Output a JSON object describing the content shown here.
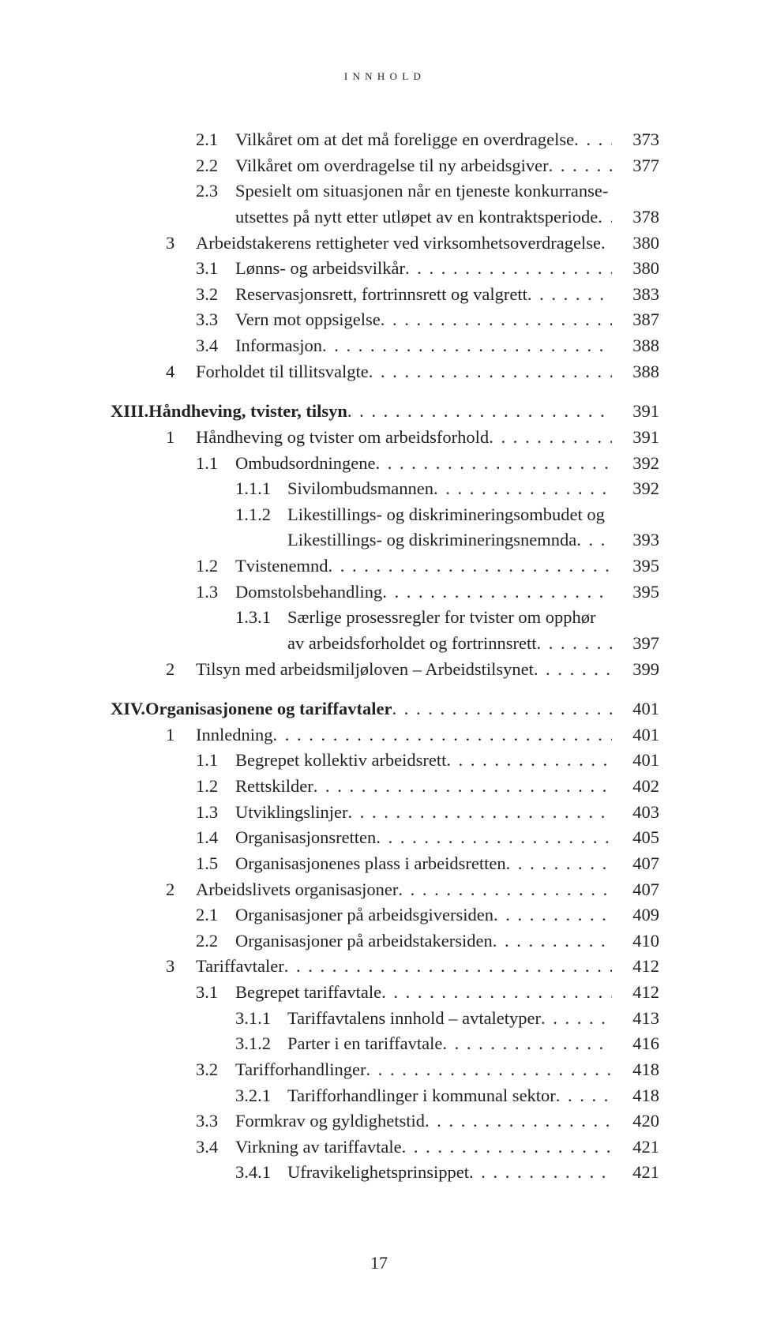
{
  "running_head": "innhold",
  "page_number": "17",
  "entries": [
    {
      "indent": "ind1",
      "numClass": "lvl2num",
      "num": "2.1",
      "title": "Vilkåret om at det må foreligge en overdragelse",
      "page": "373"
    },
    {
      "indent": "ind1",
      "numClass": "lvl2num",
      "num": "2.2",
      "title": "Vilkåret om overdragelse til ny arbeidsgiver",
      "page": "377"
    },
    {
      "indent": "ind1",
      "numClass": "lvl2num",
      "num": "2.3",
      "title": "Spesielt om situasjonen når en tjeneste konkurranse-",
      "page": ""
    },
    {
      "indent": "ind2",
      "numClass": "",
      "num": "",
      "title": "utsettes på nytt etter utløpet av en kontraktsperiode",
      "page": "378"
    },
    {
      "indent": "ind0",
      "numClass": "lvl1num",
      "num": "3",
      "title": "Arbeidstakerens rettigheter ved virksomhetsoverdragelse",
      "page": "380"
    },
    {
      "indent": "ind1",
      "numClass": "lvl2num",
      "num": "3.1",
      "title": "Lønns- og arbeidsvilkår",
      "page": "380"
    },
    {
      "indent": "ind1",
      "numClass": "lvl2num",
      "num": "3.2",
      "title": "Reservasjonsrett, fortrinnsrett og valgrett",
      "page": "383"
    },
    {
      "indent": "ind1",
      "numClass": "lvl2num",
      "num": "3.3",
      "title": "Vern mot oppsigelse",
      "page": "387"
    },
    {
      "indent": "ind1",
      "numClass": "lvl2num",
      "num": "3.4",
      "title": "Informasjon",
      "page": "388"
    },
    {
      "indent": "ind0",
      "numClass": "lvl1num",
      "num": "4",
      "title": "Forholdet til tillitsvalgte",
      "page": "388"
    }
  ],
  "section_xiii": {
    "roman": "XIII.",
    "head": {
      "title": "Håndheving, tvister, tilsyn",
      "page": "391"
    },
    "entries": [
      {
        "indent": "ind0",
        "numClass": "lvl1num",
        "num": "1",
        "title": "Håndheving og tvister om arbeidsforhold",
        "page": "391"
      },
      {
        "indent": "ind1",
        "numClass": "lvl2num",
        "num": "1.1",
        "title": "Ombudsordningene",
        "page": "392"
      },
      {
        "indent": "ind2",
        "numClass": "lvl3num",
        "num": "1.1.1",
        "title": "Sivilombudsmannen",
        "page": "392"
      },
      {
        "indent": "ind2",
        "numClass": "lvl3num",
        "num": "1.1.2",
        "title": "Likestillings- og diskrimineringsombudet og",
        "page": ""
      },
      {
        "indent": "ind3",
        "numClass": "",
        "num": "",
        "title": "Likestillings- og diskrimineringsnemnda",
        "page": "393"
      },
      {
        "indent": "ind1",
        "numClass": "lvl2num",
        "num": "1.2",
        "title": "Tvistenemnd",
        "page": "395"
      },
      {
        "indent": "ind1",
        "numClass": "lvl2num",
        "num": "1.3",
        "title": "Domstolsbehandling",
        "page": "395"
      },
      {
        "indent": "ind2",
        "numClass": "lvl3num",
        "num": "1.3.1",
        "title": "Særlige prosessregler for tvister om opphør",
        "page": ""
      },
      {
        "indent": "ind3",
        "numClass": "",
        "num": "",
        "title": "av arbeidsforholdet og fortrinnsrett",
        "page": "397"
      },
      {
        "indent": "ind0",
        "numClass": "lvl1num",
        "num": "2",
        "title": "Tilsyn med arbeidsmiljøloven – Arbeidstilsynet",
        "page": "399"
      }
    ]
  },
  "section_xiv": {
    "roman": "XIV.",
    "head": {
      "title": "Organisasjonene og tariffavtaler",
      "page": "401"
    },
    "entries": [
      {
        "indent": "ind0",
        "numClass": "lvl1num",
        "num": "1",
        "title": "Innledning",
        "page": "401"
      },
      {
        "indent": "ind1",
        "numClass": "lvl2num",
        "num": "1.1",
        "title": "Begrepet kollektiv arbeidsrett",
        "page": "401"
      },
      {
        "indent": "ind1",
        "numClass": "lvl2num",
        "num": "1.2",
        "title": "Rettskilder",
        "page": "402"
      },
      {
        "indent": "ind1",
        "numClass": "lvl2num",
        "num": "1.3",
        "title": "Utviklingslinjer",
        "page": "403"
      },
      {
        "indent": "ind1",
        "numClass": "lvl2num",
        "num": "1.4",
        "title": "Organisasjonsretten",
        "page": "405"
      },
      {
        "indent": "ind1",
        "numClass": "lvl2num",
        "num": "1.5",
        "title": "Organisasjonenes plass i arbeidsretten",
        "page": "407"
      },
      {
        "indent": "ind0",
        "numClass": "lvl1num",
        "num": "2",
        "title": "Arbeidslivets organisasjoner",
        "page": "407"
      },
      {
        "indent": "ind1",
        "numClass": "lvl2num",
        "num": "2.1",
        "title": "Organisasjoner på arbeidsgiversiden",
        "page": "409"
      },
      {
        "indent": "ind1",
        "numClass": "lvl2num",
        "num": "2.2",
        "title": "Organisasjoner på arbeidstakersiden",
        "page": "410"
      },
      {
        "indent": "ind0",
        "numClass": "lvl1num",
        "num": "3",
        "title": "Tariffavtaler",
        "page": "412"
      },
      {
        "indent": "ind1",
        "numClass": "lvl2num",
        "num": "3.1",
        "title": "Begrepet tariffavtale",
        "page": "412"
      },
      {
        "indent": "ind2",
        "numClass": "lvl3num",
        "num": "3.1.1",
        "title": "Tariffavtalens innhold – avtaletyper",
        "page": "413"
      },
      {
        "indent": "ind2",
        "numClass": "lvl3num",
        "num": "3.1.2",
        "title": "Parter i en tariffavtale",
        "page": "416"
      },
      {
        "indent": "ind1",
        "numClass": "lvl2num",
        "num": "3.2",
        "title": "Tarifforhandlinger",
        "page": "418"
      },
      {
        "indent": "ind2",
        "numClass": "lvl3num",
        "num": "3.2.1",
        "title": "Tarifforhandlinger i kommunal sektor",
        "page": "418"
      },
      {
        "indent": "ind1",
        "numClass": "lvl2num",
        "num": "3.3",
        "title": "Formkrav og gyldighetstid",
        "page": "420"
      },
      {
        "indent": "ind1",
        "numClass": "lvl2num",
        "num": "3.4",
        "title": "Virkning av tariffavtale",
        "page": "421"
      },
      {
        "indent": "ind2",
        "numClass": "lvl3num",
        "num": "3.4.1",
        "title": "Ufravikelighetsprinsippet",
        "page": "421"
      }
    ]
  }
}
